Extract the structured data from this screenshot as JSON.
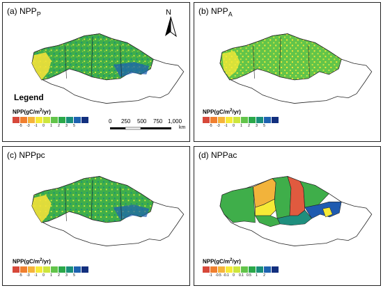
{
  "panels": [
    {
      "id": "a",
      "prefix": "(a) NPP",
      "sub": "P",
      "suffix": ""
    },
    {
      "id": "b",
      "prefix": "(b) NPP",
      "sub": "A",
      "suffix": ""
    },
    {
      "id": "c",
      "prefix": "(c) NPPpc",
      "sub": "",
      "suffix": ""
    },
    {
      "id": "d",
      "prefix": "(d) NPPac",
      "sub": "",
      "suffix": ""
    }
  ],
  "legend": {
    "heading": "Legend",
    "title_pre": "NPP(gC/m",
    "title_sup": "2",
    "title_post": "/yr)",
    "colors": [
      "#d7483a",
      "#f07f2f",
      "#f6b33a",
      "#f6ea36",
      "#cde63c",
      "#62c44a",
      "#2aa84a",
      "#1a8f7a",
      "#1e62b0",
      "#122f7e"
    ],
    "ticks_main": [
      "-5",
      "-3",
      "-1",
      "0",
      "1",
      "2",
      "3",
      "5",
      ""
    ],
    "ticks_d": [
      "-1",
      "-0.5",
      "-0.1",
      "0",
      "0.1",
      "0.5",
      "1",
      "2",
      ""
    ]
  },
  "north_label": "N",
  "scale": {
    "labels": [
      "0",
      "250",
      "500",
      "750",
      "1,000"
    ],
    "unit": "km"
  },
  "map_colors": {
    "green": "#3fae4a",
    "light_green": "#7fcc4a",
    "yellow": "#f2e13a",
    "orange": "#f2b33b",
    "red": "#e05a3f",
    "teal": "#1f8f7e",
    "blue": "#1f5bb0",
    "outline": "#222222"
  }
}
